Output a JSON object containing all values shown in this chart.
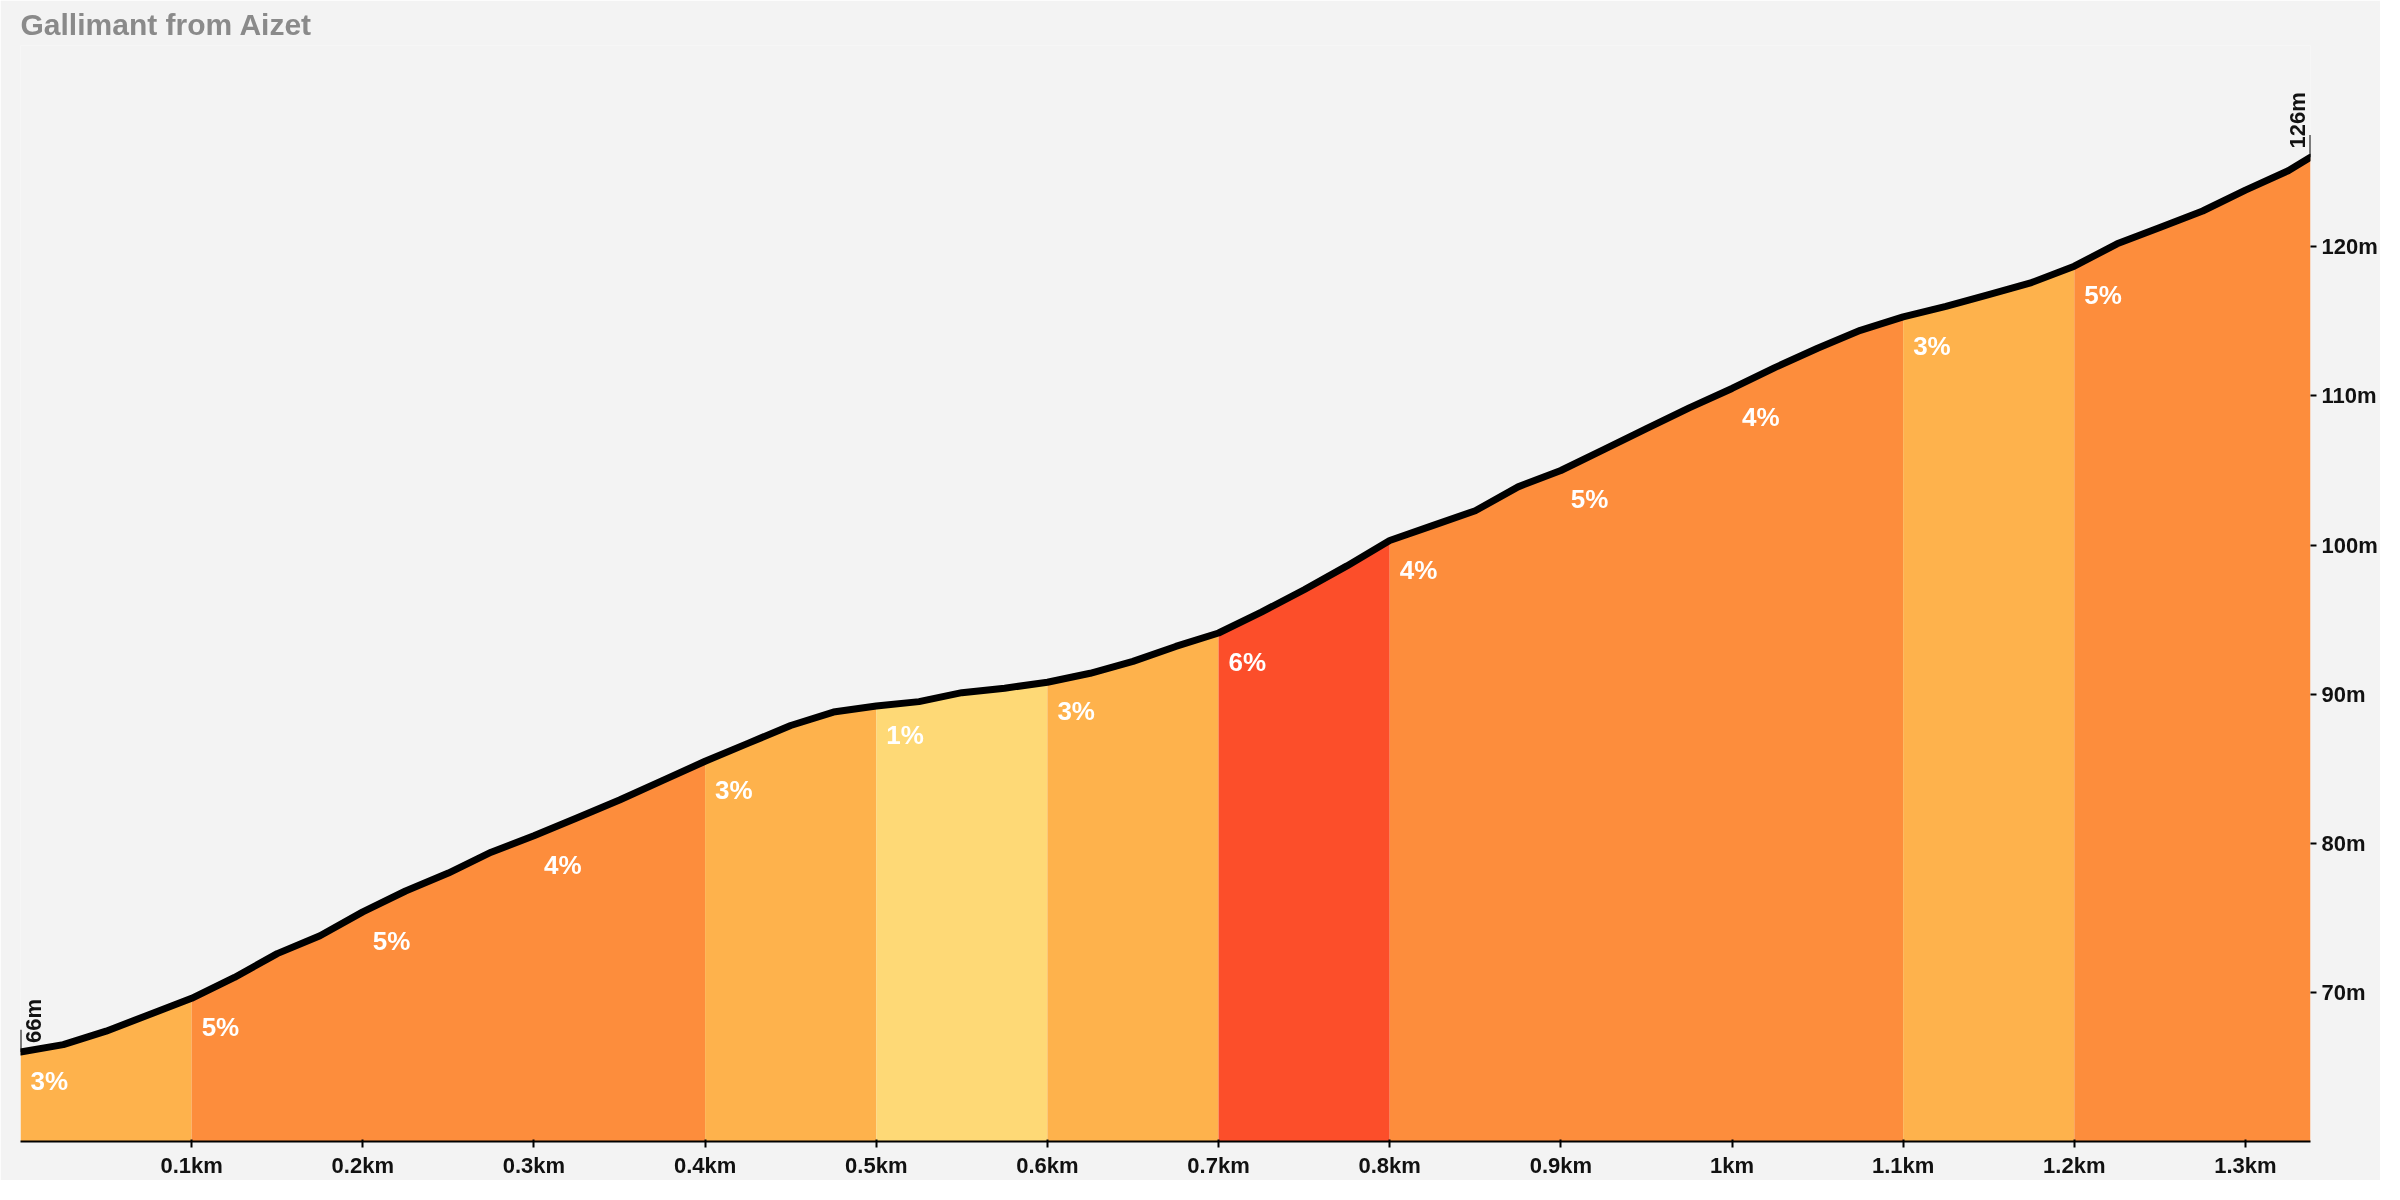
{
  "chart_data": {
    "type": "area",
    "title": "Gallimant from Aizet",
    "xlim": [
      0,
      1.338
    ],
    "ylim": [
      60,
      133.5
    ],
    "xticks": [
      {
        "value": 0.1,
        "label": "0.1km"
      },
      {
        "value": 0.2,
        "label": "0.2km"
      },
      {
        "value": 0.3,
        "label": "0.3km"
      },
      {
        "value": 0.4,
        "label": "0.4km"
      },
      {
        "value": 0.5,
        "label": "0.5km"
      },
      {
        "value": 0.6,
        "label": "0.6km"
      },
      {
        "value": 0.7,
        "label": "0.7km"
      },
      {
        "value": 0.8,
        "label": "0.8km"
      },
      {
        "value": 0.9,
        "label": "0.9km"
      },
      {
        "value": 1.0,
        "label": "1km"
      },
      {
        "value": 1.1,
        "label": "1.1km"
      },
      {
        "value": 1.2,
        "label": "1.2km"
      },
      {
        "value": 1.3,
        "label": "1.3km"
      }
    ],
    "yticks": [
      {
        "value": 70,
        "label": "70m"
      },
      {
        "value": 80,
        "label": "80m"
      },
      {
        "value": 90,
        "label": "90m"
      },
      {
        "value": 100,
        "label": "100m"
      },
      {
        "value": 110,
        "label": "110m"
      },
      {
        "value": 120,
        "label": "120m"
      }
    ],
    "grid": false,
    "series": [
      {
        "color": "#feb24c",
        "x": [
          0,
          0.025,
          0.05,
          0.075,
          0.1
        ],
        "values": [
          66,
          66.5,
          67.4,
          68.5,
          69.6
        ]
      },
      {
        "color": "#fd8d3c",
        "x": [
          0.1,
          0.125,
          0.15,
          0.175,
          0.2,
          0.225,
          0.25,
          0.275,
          0.3,
          0.325,
          0.35,
          0.375,
          0.4
        ],
        "values": [
          69.6,
          71.0,
          72.6,
          73.8,
          75.4,
          76.8,
          78.0,
          79.4,
          80.5,
          81.7,
          82.9,
          84.2,
          85.5
        ]
      },
      {
        "color": "#feb24c",
        "x": [
          0.4,
          0.425,
          0.45,
          0.475,
          0.5
        ],
        "values": [
          85.5,
          86.7,
          87.9,
          88.8,
          89.2
        ]
      },
      {
        "color": "#fed976",
        "x": [
          0.5,
          0.525,
          0.55,
          0.575,
          0.6
        ],
        "values": [
          89.2,
          89.5,
          90.1,
          90.4,
          90.8
        ]
      },
      {
        "color": "#feb24c",
        "x": [
          0.6,
          0.625,
          0.65,
          0.675,
          0.7
        ],
        "values": [
          90.8,
          91.4,
          92.2,
          93.2,
          94.1
        ]
      },
      {
        "color": "#fc4e2a",
        "x": [
          0.7,
          0.725,
          0.75,
          0.775,
          0.8
        ],
        "values": [
          94.1,
          95.5,
          97.0,
          98.6,
          100.3
        ]
      },
      {
        "color": "#fd8d3c",
        "x": [
          0.8,
          0.825,
          0.85,
          0.875,
          0.9,
          0.925,
          0.95,
          0.975,
          1.0,
          1.025,
          1.05,
          1.075,
          1.1
        ],
        "values": [
          100.3,
          101.3,
          102.3,
          103.9,
          105.0,
          106.4,
          107.8,
          109.2,
          110.5,
          111.9,
          113.2,
          114.4,
          115.3
        ]
      },
      {
        "color": "#feb24c",
        "x": [
          1.1,
          1.125,
          1.15,
          1.175,
          1.2
        ],
        "values": [
          115.3,
          116.0,
          116.8,
          117.6,
          118.7
        ]
      },
      {
        "color": "#fd8d3c",
        "x": [
          1.2,
          1.225,
          1.25,
          1.275,
          1.3,
          1.325,
          1.338
        ],
        "values": [
          118.7,
          120.2,
          121.3,
          122.4,
          123.8,
          125.1,
          126
        ]
      },
      {
        "type": "line",
        "color": "#000000",
        "x": [
          0,
          0.025,
          0.05,
          0.075,
          0.1,
          0.125,
          0.15,
          0.175,
          0.2,
          0.225,
          0.25,
          0.275,
          0.3,
          0.325,
          0.35,
          0.375,
          0.4,
          0.425,
          0.45,
          0.475,
          0.5,
          0.525,
          0.55,
          0.575,
          0.6,
          0.625,
          0.65,
          0.675,
          0.7,
          0.725,
          0.75,
          0.775,
          0.8,
          0.825,
          0.85,
          0.875,
          0.9,
          0.925,
          0.95,
          0.975,
          1.0,
          1.025,
          1.05,
          1.075,
          1.1,
          1.125,
          1.15,
          1.175,
          1.2,
          1.225,
          1.25,
          1.275,
          1.3,
          1.325,
          1.338
        ],
        "values": [
          66,
          66.5,
          67.4,
          68.5,
          69.6,
          71.0,
          72.6,
          73.8,
          75.4,
          76.8,
          78.0,
          79.4,
          80.5,
          81.7,
          82.9,
          84.2,
          85.5,
          86.7,
          87.9,
          88.8,
          89.2,
          89.5,
          90.1,
          90.4,
          90.8,
          91.4,
          92.2,
          93.2,
          94.1,
          95.5,
          97.0,
          98.6,
          100.3,
          101.3,
          102.3,
          103.9,
          105.0,
          106.4,
          107.8,
          109.2,
          110.5,
          111.9,
          113.2,
          114.4,
          115.3,
          116.0,
          116.8,
          117.6,
          118.7,
          120.2,
          121.3,
          122.4,
          123.8,
          125.1,
          126
        ]
      }
    ],
    "annotations": [
      {
        "text": "66m",
        "x": 0,
        "y": 66
      },
      {
        "text": "126m",
        "x": 1.338,
        "y": 126
      },
      {
        "text": "3%",
        "x": 0.0,
        "y": 66
      },
      {
        "text": "5%",
        "x": 0.1,
        "y": 69.6
      },
      {
        "text": "5%",
        "x": 0.2,
        "y": 75.4
      },
      {
        "text": "4%",
        "x": 0.3,
        "y": 80.5
      },
      {
        "text": "3%",
        "x": 0.4,
        "y": 85.5
      },
      {
        "text": "1%",
        "x": 0.5,
        "y": 89.2
      },
      {
        "text": "3%",
        "x": 0.6,
        "y": 90.8
      },
      {
        "text": "6%",
        "x": 0.7,
        "y": 94.1
      },
      {
        "text": "4%",
        "x": 0.8,
        "y": 100.3
      },
      {
        "text": "5%",
        "x": 0.9,
        "y": 105.0
      },
      {
        "text": "4%",
        "x": 1.0,
        "y": 110.5
      },
      {
        "text": "3%",
        "x": 1.1,
        "y": 115.3
      },
      {
        "text": "5%",
        "x": 1.2,
        "y": 118.7
      }
    ]
  }
}
